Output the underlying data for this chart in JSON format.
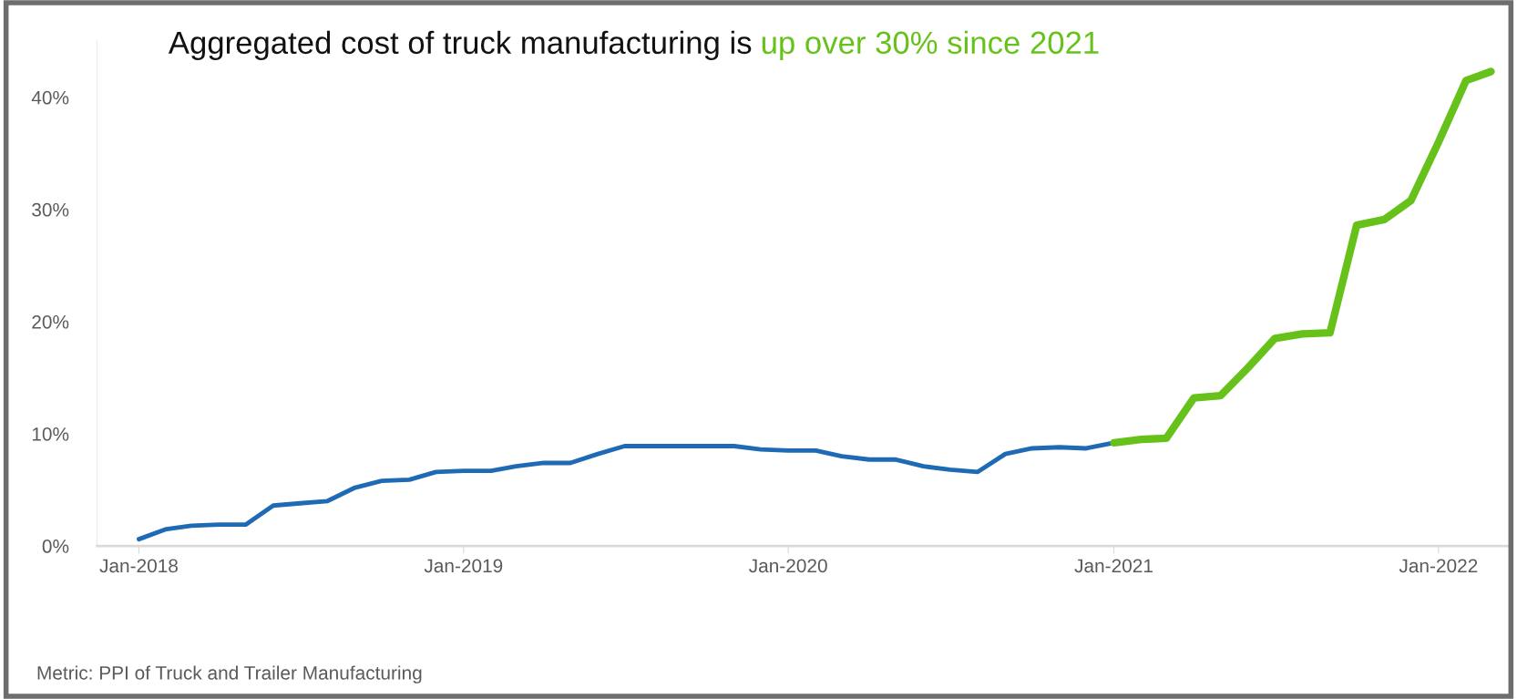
{
  "chart_data": {
    "type": "line",
    "title": "Aggregated cost of truck manufacturing is",
    "subtitle": "up over 30% since 2021",
    "series": [
      {
        "color": "#1f6ab4",
        "x": [
          "2018-01",
          "2018-02",
          "2018-03",
          "2018-04",
          "2018-05",
          "2018-06",
          "2018-07",
          "2018-08",
          "2018-09",
          "2018-10",
          "2018-11",
          "2018-12",
          "2019-01",
          "2019-02",
          "2019-03",
          "2019-04",
          "2019-05",
          "2019-06",
          "2019-07",
          "2019-08",
          "2019-09",
          "2019-10",
          "2019-11",
          "2019-12",
          "2020-01",
          "2020-02",
          "2020-03",
          "2020-04",
          "2020-05",
          "2020-06",
          "2020-07",
          "2020-08",
          "2020-09",
          "2020-10",
          "2020-11",
          "2020-12",
          "2021-01"
        ],
        "values": [
          0.6,
          1.5,
          1.8,
          1.9,
          1.9,
          3.6,
          3.8,
          4.0,
          5.2,
          5.8,
          5.9,
          6.6,
          6.7,
          6.7,
          7.1,
          7.4,
          7.4,
          8.2,
          8.9,
          8.9,
          8.9,
          8.9,
          8.9,
          8.6,
          8.5,
          8.5,
          8.0,
          7.7,
          7.7,
          7.1,
          6.8,
          6.6,
          8.2,
          8.7,
          8.8,
          8.7,
          9.2
        ]
      },
      {
        "color": "#66c21a",
        "x": [
          "2021-01",
          "2021-02",
          "2021-03",
          "2021-04",
          "2021-05",
          "2021-06",
          "2021-07",
          "2021-08",
          "2021-09",
          "2021-10",
          "2021-11",
          "2021-12",
          "2022-01",
          "2022-02",
          "2022-03"
        ],
        "values": [
          9.2,
          9.5,
          9.6,
          13.2,
          13.4,
          15.9,
          18.5,
          18.9,
          19.0,
          28.6,
          29.1,
          30.8,
          36.0,
          41.5,
          42.3
        ]
      }
    ],
    "xlim": [
      "2017-11-15",
      "2022-03-20"
    ],
    "xticks": [
      {
        "value": "2018-01",
        "label": "Jan-2018"
      },
      {
        "value": "2019-01",
        "label": "Jan-2019"
      },
      {
        "value": "2020-01",
        "label": "Jan-2020"
      },
      {
        "value": "2021-01",
        "label": "Jan-2021"
      },
      {
        "value": "2022-01",
        "label": "Jan-2022"
      }
    ],
    "ylim": [
      0,
      45
    ],
    "yticks": [
      {
        "value": 0,
        "label": "0%"
      },
      {
        "value": 10,
        "label": "10%"
      },
      {
        "value": 20,
        "label": "20%"
      },
      {
        "value": 30,
        "label": "30%"
      },
      {
        "value": 40,
        "label": "40%"
      }
    ],
    "grid": false,
    "legend": false,
    "annotations": [
      "Metric: PPI of Truck and Trailer Manufacturing"
    ]
  }
}
